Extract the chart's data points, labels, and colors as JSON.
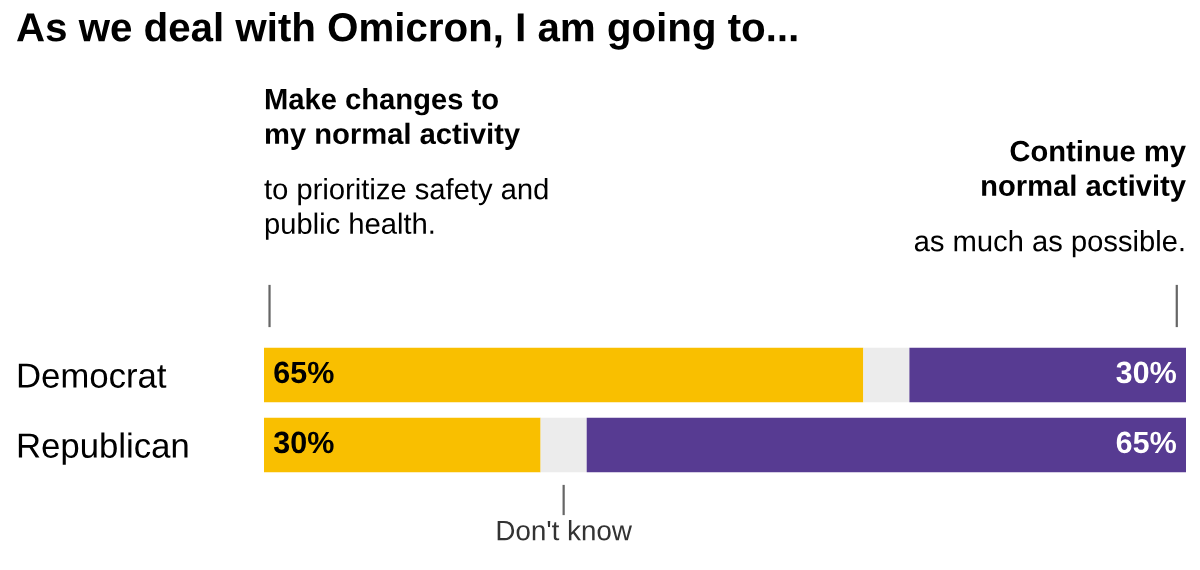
{
  "chart_data": {
    "type": "bar",
    "orientation": "horizontal",
    "stacked": true,
    "title": "As we deal with Omicron, I am going to...",
    "categories": [
      "Democrat",
      "Republican"
    ],
    "xlim": [
      0,
      100
    ],
    "series": [
      {
        "color": "#f9bf00",
        "values": [
          65,
          30
        ],
        "value_labels": [
          "65%",
          "30%"
        ]
      },
      {
        "name": "Don't know",
        "color": "#ececec",
        "values": [
          5,
          5
        ],
        "value_labels": [
          null,
          null
        ]
      },
      {
        "color": "#573b92",
        "values": [
          30,
          65
        ],
        "value_labels": [
          "30%",
          "65%"
        ]
      }
    ],
    "annotations": [
      "Make changes to\nmy normal activity",
      "to prioritize safety and\npublic health.",
      "Continue my\nnormal activity",
      "as much as possible."
    ],
    "legend": false,
    "grid": false,
    "tick_labels": "y"
  }
}
